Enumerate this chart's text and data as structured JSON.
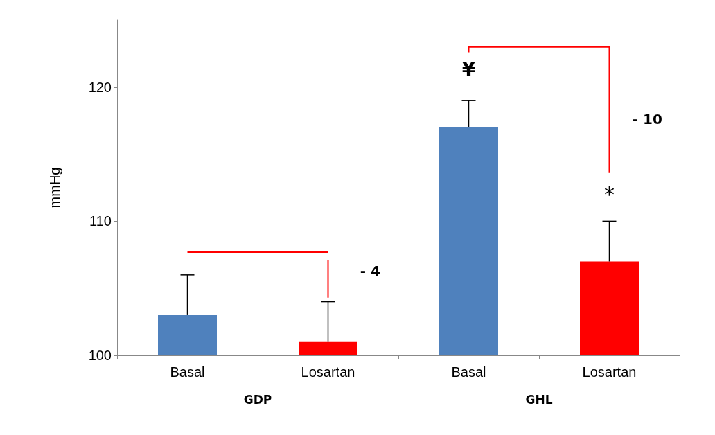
{
  "chart_data": {
    "type": "bar",
    "ylabel": "mmHg",
    "categories": [
      "Basal",
      "Losartan",
      "Basal",
      "Losartan"
    ],
    "values": [
      103,
      101,
      117,
      107
    ],
    "colors": [
      "#4f81bd",
      "#ff0000",
      "#4f81bd",
      "#ff0000"
    ],
    "errors": [
      [
        103,
        106
      ],
      [
        101,
        104
      ],
      [
        117,
        119
      ],
      [
        107,
        110
      ]
    ],
    "ylim": [
      100,
      125
    ],
    "yticks": [
      100,
      110,
      120
    ],
    "grid": false,
    "annotations": [
      "GDP",
      "GHL",
      "- 4",
      "- 10",
      "¥",
      "*"
    ]
  }
}
